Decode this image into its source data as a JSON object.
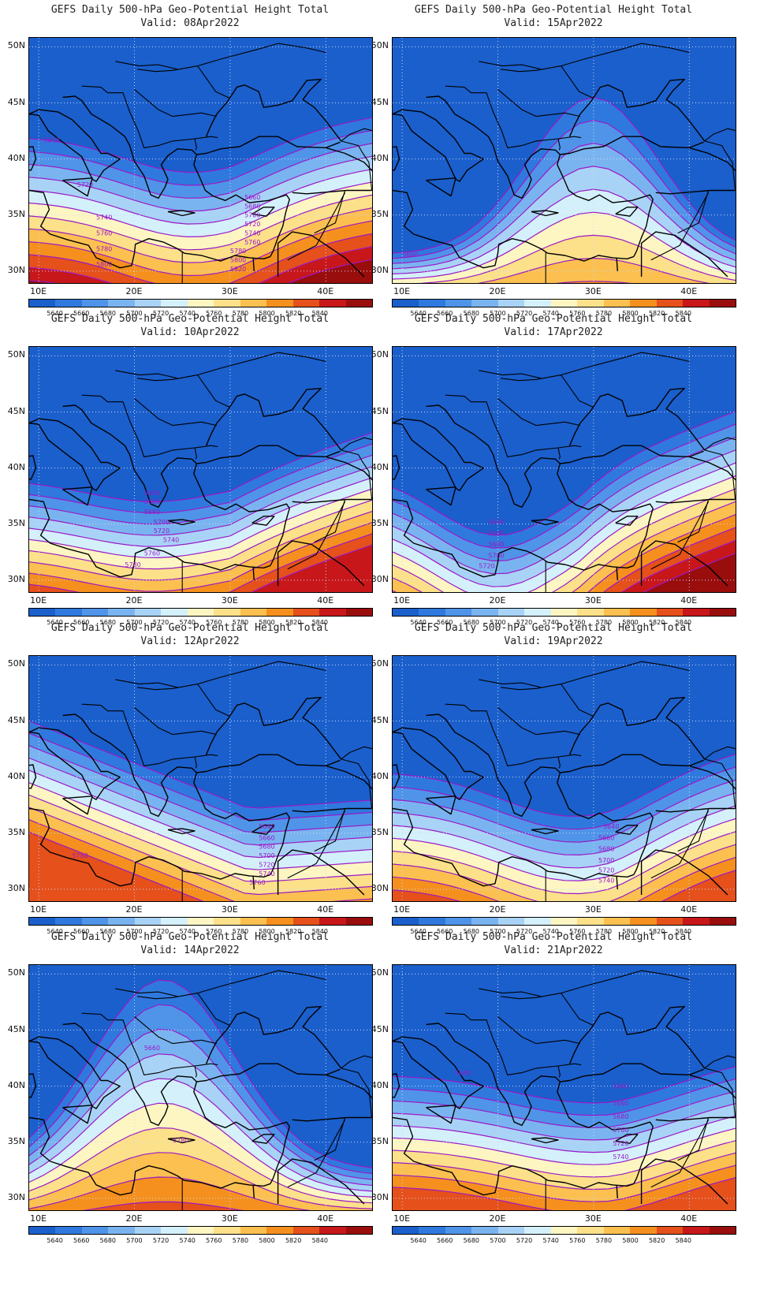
{
  "palette": [
    "#1a5fcc",
    "#2f79de",
    "#4f94e8",
    "#7ab4f0",
    "#a9d3f6",
    "#d4f0fb",
    "#fdf6c2",
    "#fde18a",
    "#fbc050",
    "#f5901e",
    "#e5501b",
    "#c8171a",
    "#9a0d0d"
  ],
  "contour_color": "#9b19c8",
  "legend": {
    "levels": [
      "5640",
      "5660",
      "5680",
      "5700",
      "5720",
      "5740",
      "5760",
      "5780",
      "5800",
      "5820",
      "5840"
    ]
  },
  "axes": {
    "lat_labels": [
      "50N",
      "45N",
      "40N",
      "35N",
      "30N"
    ],
    "lon_labels": [
      "10E",
      "20E",
      "30E",
      "40E"
    ]
  },
  "panels": [
    {
      "title": "GEFS Daily 500-hPa Geo-Potential Height Total",
      "valid": "Valid: 08Apr2022",
      "labels": [
        "5640",
        "5720",
        "5740",
        "5760",
        "5780",
        "5800",
        "5660",
        "5680",
        "5700",
        "5720",
        "5740",
        "5760",
        "5780",
        "5800",
        "5820"
      ]
    },
    {
      "title": "GEFS Daily 500-hPa Geo-Potential Height Total",
      "valid": "Valid: 15Apr2022",
      "labels": [
        "5660"
      ]
    },
    {
      "title": "GEFS Daily 500-hPa Geo-Potential Height Total",
      "valid": "Valid: 10Apr2022",
      "labels": [
        "5640",
        "5660",
        "5680",
        "5700",
        "5720",
        "5740",
        "5760",
        "5780"
      ]
    },
    {
      "title": "GEFS Daily 500-hPa Geo-Potential Height Total",
      "valid": "Valid: 17Apr2022",
      "labels": [
        "5640",
        "5660",
        "5680",
        "5700",
        "5720"
      ]
    },
    {
      "title": "GEFS Daily 500-hPa Geo-Potential Height Total",
      "valid": "Valid: 12Apr2022",
      "labels": [
        "5780",
        "5640",
        "5660",
        "5680",
        "5700",
        "5720",
        "5740",
        "5760"
      ]
    },
    {
      "title": "GEFS Daily 500-hPa Geo-Potential Height Total",
      "valid": "Valid: 19Apr2022",
      "labels": [
        "5640",
        "5660",
        "5680",
        "5700",
        "5720",
        "5740"
      ]
    },
    {
      "title": "GEFS Daily 500-hPa Geo-Potential Height Total",
      "valid": "Valid: 14Apr2022",
      "labels": [
        "5660",
        "5780"
      ]
    },
    {
      "title": "GEFS Daily 500-hPa Geo-Potential Height Total",
      "valid": "Valid: 21Apr2022",
      "labels": [
        "5640",
        "5640",
        "5660",
        "5680",
        "5700",
        "5720",
        "5740"
      ]
    }
  ]
}
